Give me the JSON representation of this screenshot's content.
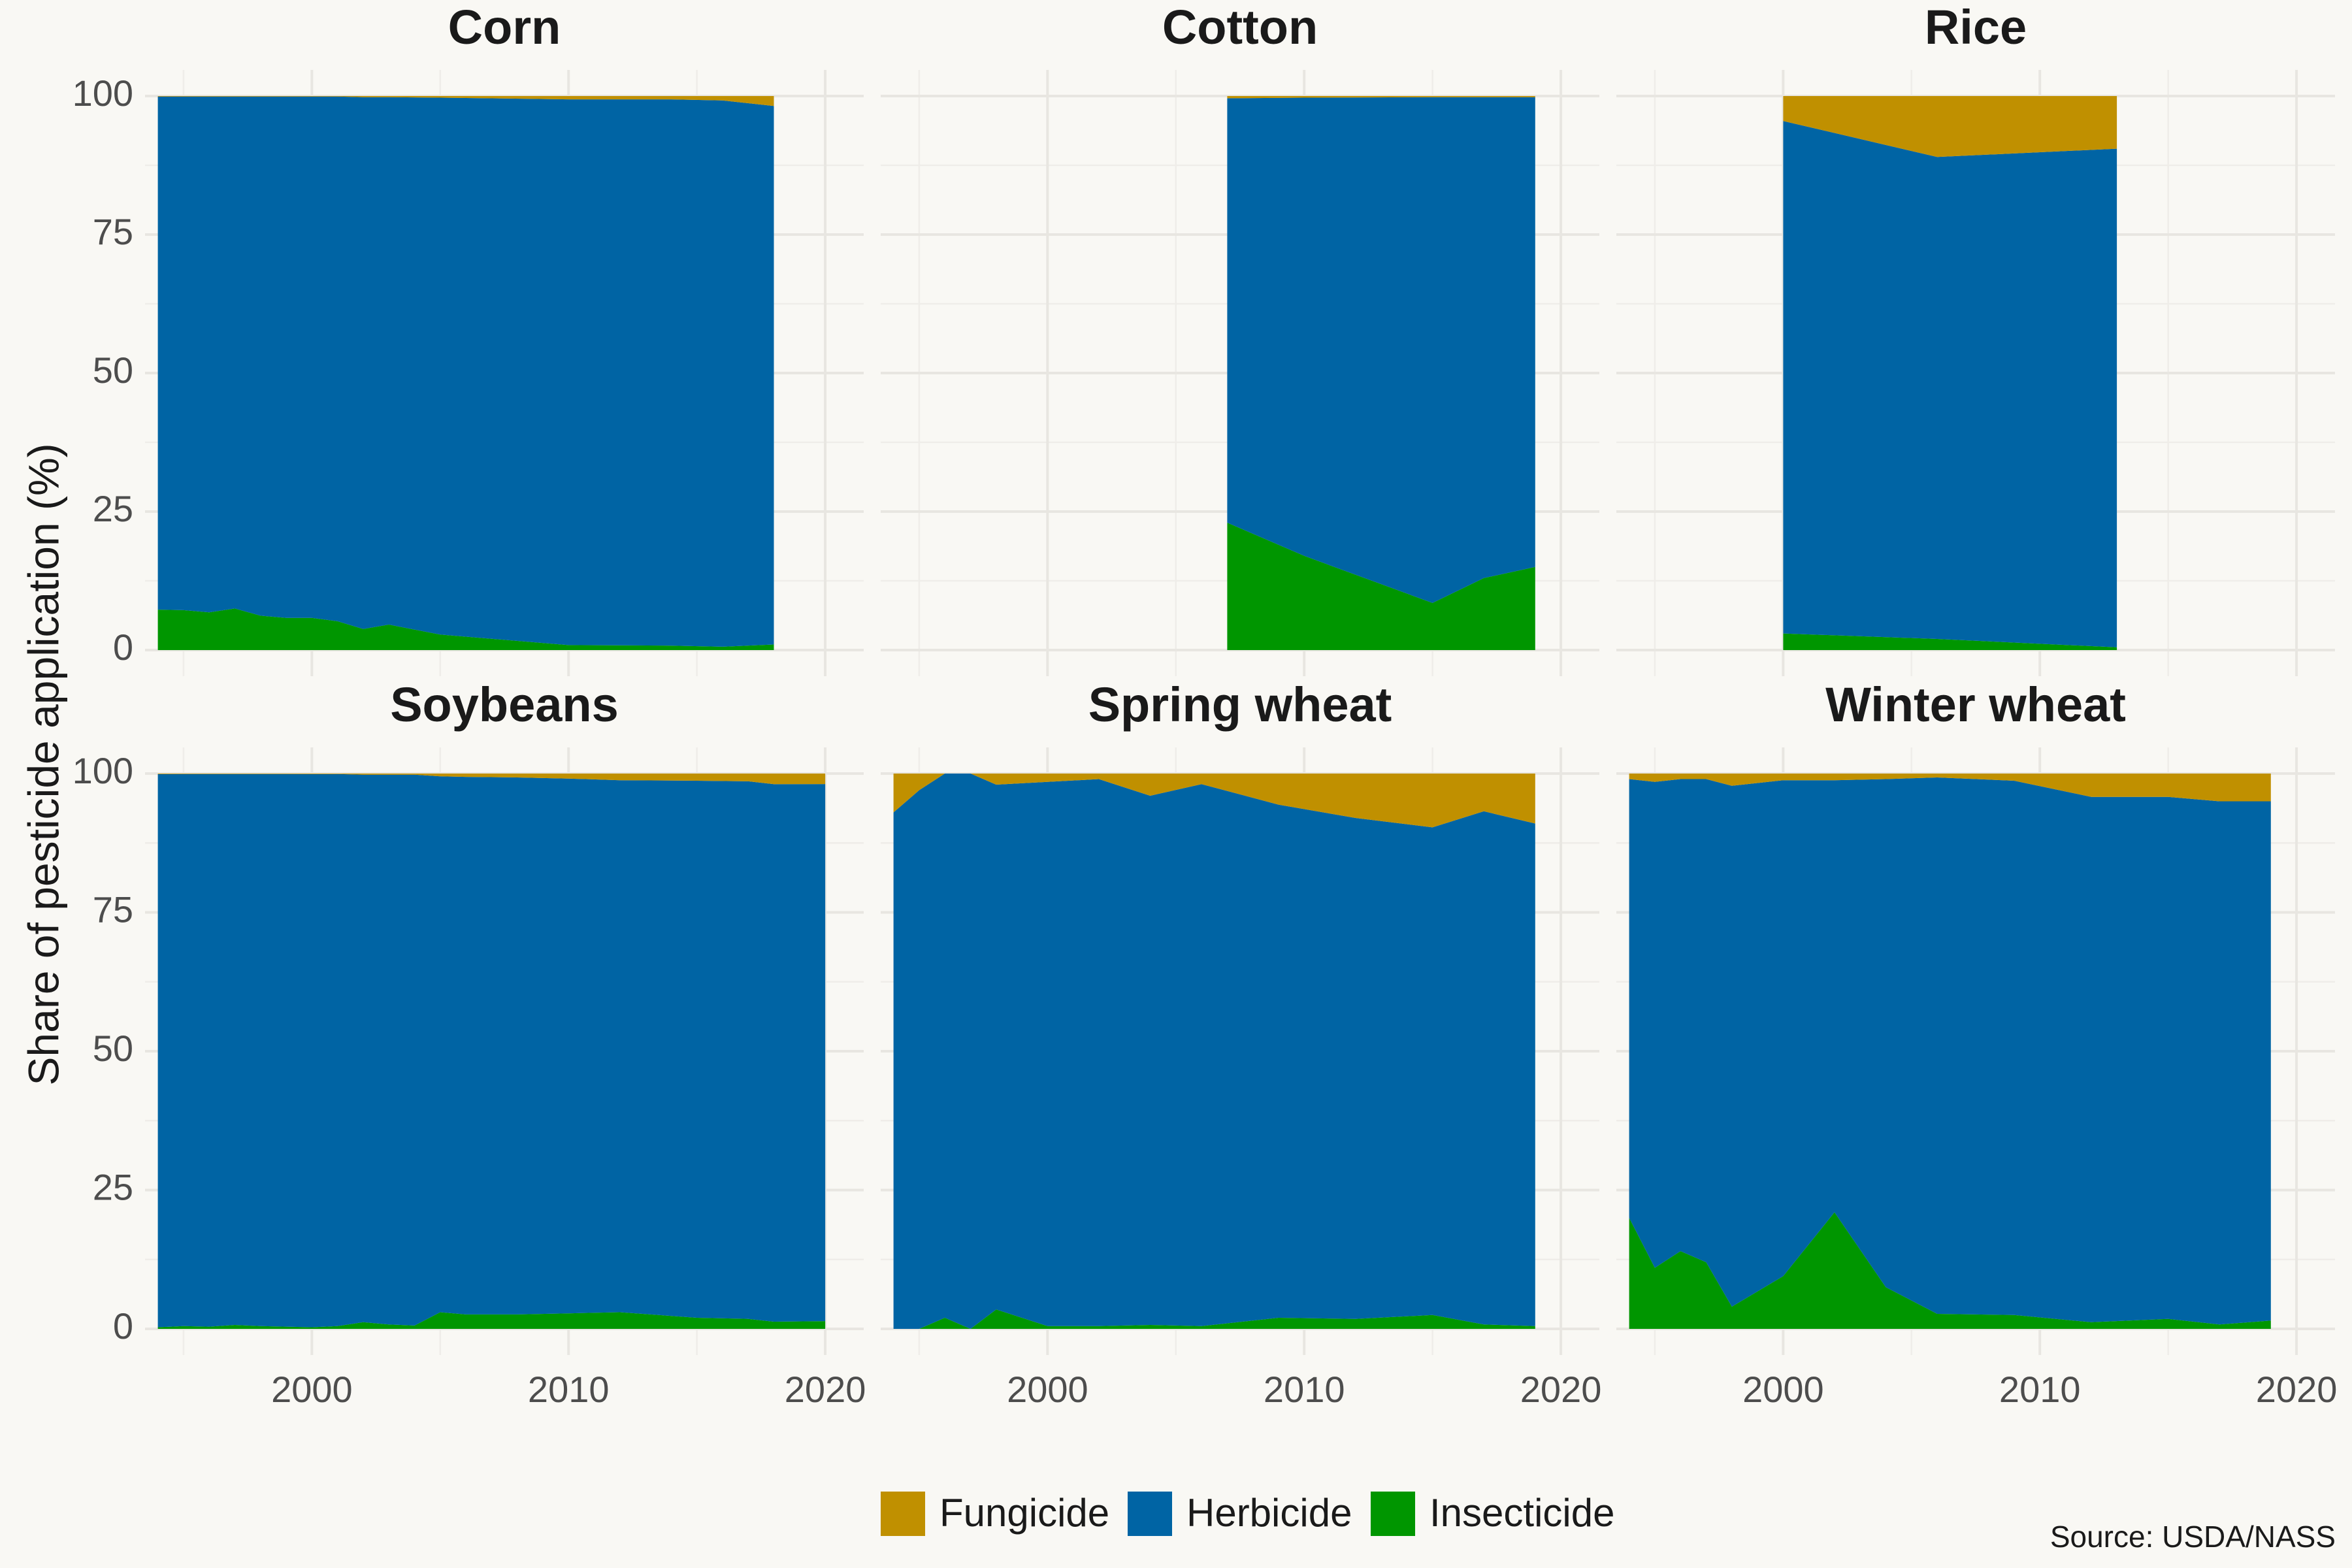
{
  "chart_data": {
    "type": "area",
    "stacked": true,
    "percent": true,
    "ylabel": "Share of pesticide application (%)",
    "yticks": [
      0,
      25,
      50,
      75,
      100
    ],
    "xticks": [
      2000,
      2010,
      2020
    ],
    "xlim": [
      1993.5,
      2021.5
    ],
    "ylim": [
      0,
      100
    ],
    "grid": true,
    "legend_position": "bottom",
    "series_order": [
      "Insecticide",
      "Herbicide",
      "Fungicide"
    ],
    "legend": [
      {
        "name": "Fungicide",
        "color": "#c09000"
      },
      {
        "name": "Herbicide",
        "color": "#0064a4"
      },
      {
        "name": "Insecticide",
        "color": "#009600"
      }
    ],
    "caption": "Source: USDA/NASS",
    "facets": [
      {
        "title": "Corn",
        "years": [
          1994,
          1995,
          1996,
          1997,
          1998,
          1999,
          2000,
          2001,
          2002,
          2003,
          2005,
          2010,
          2014,
          2016,
          2018
        ],
        "Insecticide": [
          7.3,
          7.2,
          6.8,
          7.5,
          6.2,
          5.8,
          5.8,
          5.2,
          3.8,
          4.6,
          2.8,
          0.9,
          0.8,
          0.6,
          1.0
        ],
        "Herbicide": [
          92.6,
          92.7,
          93.1,
          92.4,
          93.7,
          94.1,
          94.1,
          94.7,
          96.0,
          95.2,
          96.9,
          98.5,
          98.6,
          98.6,
          97.2
        ],
        "Fungicide": [
          0.1,
          0.1,
          0.1,
          0.1,
          0.1,
          0.1,
          0.1,
          0.1,
          0.2,
          0.2,
          0.3,
          0.6,
          0.6,
          0.8,
          1.8
        ]
      },
      {
        "title": "Cotton",
        "years": [
          2007,
          2010,
          2015,
          2017,
          2019
        ],
        "Insecticide": [
          23.0,
          17.0,
          8.5,
          13.0,
          15.0
        ],
        "Herbicide": [
          76.6,
          82.7,
          91.3,
          86.8,
          84.8
        ],
        "Fungicide": [
          0.4,
          0.3,
          0.2,
          0.2,
          0.2
        ]
      },
      {
        "title": "Rice",
        "years": [
          2000,
          2006,
          2013
        ],
        "Insecticide": [
          3.0,
          2.0,
          0.5
        ],
        "Herbicide": [
          92.5,
          87.0,
          90.0
        ],
        "Fungicide": [
          4.5,
          11.0,
          9.5
        ]
      },
      {
        "title": "Soybeans",
        "years": [
          1994,
          1995,
          1996,
          1997,
          1998,
          1999,
          2000,
          2001,
          2002,
          2003,
          2004,
          2005,
          2006,
          2008,
          2010,
          2012,
          2015,
          2017,
          2018,
          2020
        ],
        "Insecticide": [
          0.3,
          0.5,
          0.4,
          0.7,
          0.5,
          0.4,
          0.3,
          0.5,
          1.2,
          0.8,
          0.6,
          3.0,
          2.6,
          2.6,
          2.8,
          3.0,
          2.0,
          1.8,
          1.3,
          1.4
        ],
        "Herbicide": [
          99.6,
          99.4,
          99.5,
          99.2,
          99.4,
          99.5,
          99.6,
          99.4,
          98.6,
          99.0,
          99.2,
          96.5,
          96.8,
          96.7,
          96.3,
          95.8,
          96.7,
          96.8,
          96.8,
          96.7
        ],
        "Fungicide": [
          0.1,
          0.1,
          0.1,
          0.1,
          0.1,
          0.1,
          0.1,
          0.1,
          0.2,
          0.2,
          0.2,
          0.5,
          0.6,
          0.7,
          0.9,
          1.2,
          1.3,
          1.4,
          1.9,
          1.9
        ]
      },
      {
        "title": "Spring wheat",
        "years": [
          1994,
          1995,
          1996,
          1997,
          1998,
          2000,
          2002,
          2004,
          2006,
          2009,
          2012,
          2015,
          2017,
          2019
        ],
        "Insecticide": [
          0.0,
          0.0,
          2.0,
          0.0,
          3.5,
          0.5,
          0.5,
          0.7,
          0.5,
          2.0,
          1.8,
          2.5,
          0.8,
          0.5
        ],
        "Herbicide": [
          93.0,
          97.0,
          98.0,
          100.0,
          94.5,
          98.0,
          98.5,
          95.3,
          97.6,
          92.4,
          90.2,
          87.8,
          92.4,
          90.5
        ],
        "Fungicide": [
          7.0,
          3.0,
          0.0,
          0.0,
          2.0,
          1.5,
          1.0,
          4.0,
          1.9,
          5.6,
          8.0,
          9.7,
          6.8,
          9.0
        ]
      },
      {
        "title": "Winter wheat",
        "years": [
          1994,
          1995,
          1996,
          1997,
          1998,
          2000,
          2002,
          2004,
          2006,
          2009,
          2012,
          2015,
          2017,
          2019
        ],
        "Insecticide": [
          20.0,
          11.0,
          14.0,
          12.0,
          4.0,
          9.5,
          21.0,
          7.5,
          2.7,
          2.5,
          1.2,
          1.8,
          0.8,
          1.5
        ],
        "Herbicide": [
          79.0,
          87.5,
          85.0,
          87.0,
          93.8,
          89.3,
          77.8,
          91.5,
          96.6,
          96.2,
          94.6,
          94.0,
          94.2,
          93.5
        ],
        "Fungicide": [
          1.0,
          1.5,
          1.0,
          1.0,
          2.2,
          1.2,
          1.2,
          1.0,
          0.7,
          1.3,
          4.2,
          4.2,
          5.0,
          5.0
        ]
      }
    ]
  }
}
